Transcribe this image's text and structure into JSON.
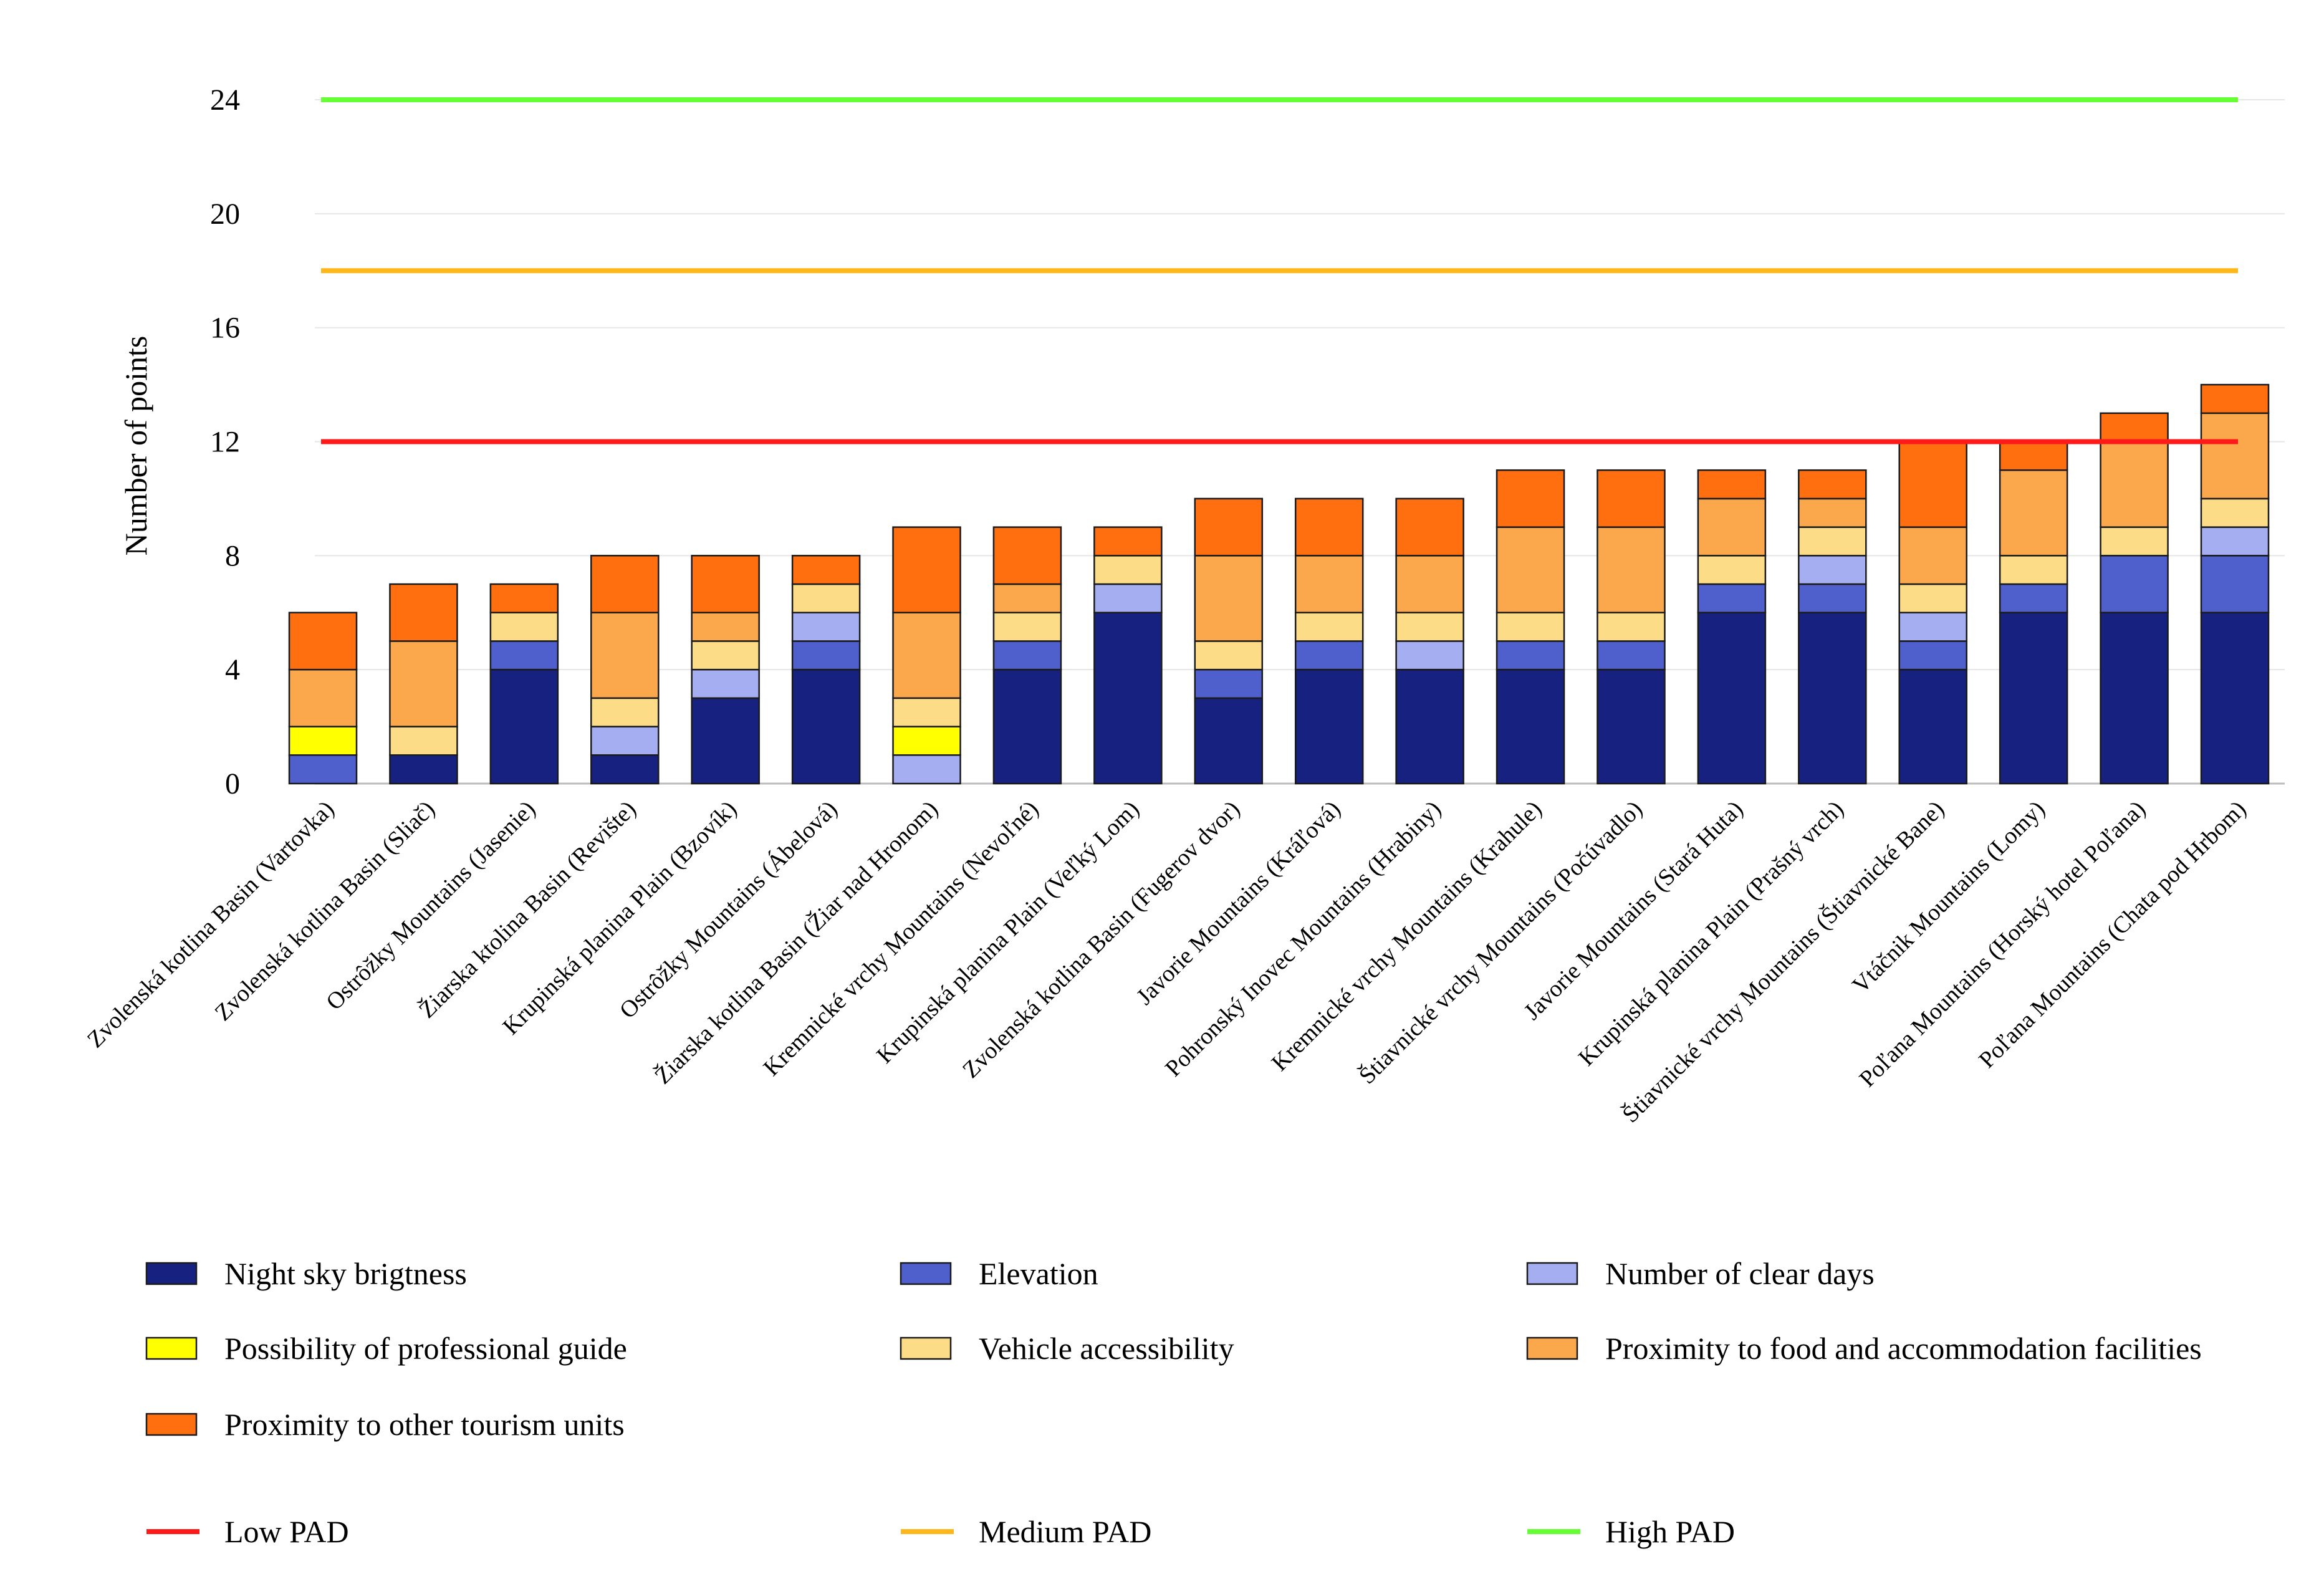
{
  "chart_data": {
    "type": "bar",
    "stacked": true,
    "ylabel": "Number of points",
    "xlabel": "",
    "ylim": [
      0,
      24
    ],
    "yticks": [
      0,
      4,
      8,
      12,
      16,
      20,
      24
    ],
    "grid": true,
    "categories": [
      "Zvolenská kotlina Basin (Vartovka)",
      "Zvolenská kotlina Basin (Sliač)",
      "Ostrôžky Mountains (Jasenie)",
      "Žiarska ktolina Basin (Revište)",
      "Krupinská planina Plain (Bzovík)",
      "Ostrôžky Mountains (Ábelová)",
      "Žiarska kotlina Basin (Žiar nad Hronom)",
      "Kremnické vrchy Mountains (Nevoľné)",
      "Krupinská planina Plain (Veľký Lom)",
      "Zvolenská kotlina Basin (Fugerov dvor)",
      "Javorie Mountains (Kráľová)",
      "Pohronský Inovec Mountains (Hrabiny)",
      "Kremnické vrchy Mountains (Krahule)",
      "Štiavnické vrchy Mountains (Počúvadlo)",
      "Javorie Mountains (Stará Huta)",
      "Krupinská planina Plain (Prašný vrch)",
      "Štiavnické vrchy Mountains (Štiavnické Bane)",
      "Vtáčnik Mountains (Lomy)",
      "Poľana Mountains (Horský hotel Poľana)",
      "Poľana Mountains (Chata pod Hrbom)"
    ],
    "series": [
      {
        "name": "Night sky brigtness",
        "color": "#172180",
        "values": [
          0,
          1,
          4,
          1,
          3,
          4,
          0,
          4,
          6,
          3,
          4,
          4,
          4,
          4,
          6,
          6,
          4,
          6,
          6,
          6
        ]
      },
      {
        "name": "Elevation",
        "color": "#4F5FCB",
        "values": [
          1,
          0,
          1,
          0,
          0,
          1,
          0,
          1,
          0,
          1,
          1,
          0,
          1,
          1,
          1,
          1,
          1,
          1,
          2,
          2
        ]
      },
      {
        "name": "Number of clear days",
        "color": "#A5AEF0",
        "values": [
          0,
          0,
          0,
          1,
          1,
          1,
          1,
          0,
          1,
          0,
          0,
          1,
          0,
          0,
          0,
          1,
          1,
          0,
          0,
          1
        ]
      },
      {
        "name": "Possibility of professional guide",
        "color": "#FFFF00",
        "values": [
          1,
          0,
          0,
          0,
          0,
          0,
          1,
          0,
          0,
          0,
          0,
          0,
          0,
          0,
          0,
          0,
          0,
          0,
          0,
          0
        ]
      },
      {
        "name": "Vehicle accessibility",
        "color": "#FDDC87",
        "values": [
          0,
          1,
          1,
          1,
          1,
          1,
          1,
          1,
          1,
          1,
          1,
          1,
          1,
          1,
          1,
          1,
          1,
          1,
          1,
          1
        ]
      },
      {
        "name": "Proximity to food and accommodation facilities",
        "color": "#FBA84D",
        "values": [
          2,
          3,
          0,
          3,
          1,
          0,
          3,
          1,
          0,
          3,
          2,
          2,
          3,
          3,
          2,
          1,
          2,
          3,
          3,
          3
        ]
      },
      {
        "name": "Proximity to other tourism units",
        "color": "#FF6F10",
        "values": [
          2,
          2,
          1,
          2,
          2,
          1,
          3,
          2,
          1,
          2,
          2,
          2,
          2,
          2,
          1,
          1,
          3,
          1,
          1,
          1
        ]
      }
    ],
    "reference_lines": [
      {
        "name": "Low PAD",
        "value": 12,
        "color": "#FF1A1A"
      },
      {
        "name": "Medium PAD",
        "value": 18,
        "color": "#FFB81C"
      },
      {
        "name": "High PAD",
        "value": 24,
        "color": "#66FF33"
      }
    ]
  }
}
